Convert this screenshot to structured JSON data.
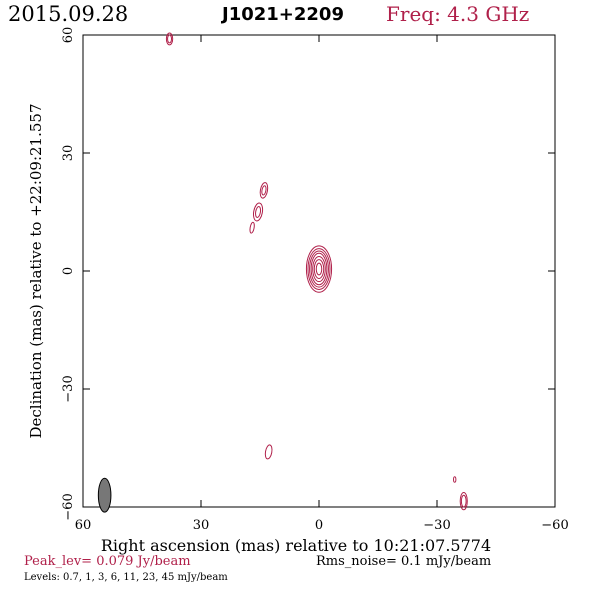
{
  "header": {
    "date": "2015.09.28",
    "source": "J1021+2209",
    "frequency": "Freq: 4.3 GHz"
  },
  "footer": {
    "peak": "Peak_lev=  0.079 Jy/beam",
    "rms": "Rms_noise=  0.1 mJy/beam",
    "levels": "Levels: 0.7,   1,   3,   6,  11,  23,  45 mJy/beam"
  },
  "colors": {
    "contour": "#b0204a",
    "beam": "#777777",
    "axis": "#000000"
  },
  "chart_data": {
    "type": "contour",
    "xlabel": "Right ascension (mas) relative to 10:21:07.5774",
    "ylabel": "Declination (mas) relative to +22:09:21.557",
    "xlim": [
      60,
      -60
    ],
    "ylim": [
      -60,
      60
    ],
    "xticks": [
      60,
      30,
      0,
      -30,
      -60
    ],
    "yticks": [
      -60,
      -30,
      0,
      30,
      60
    ],
    "xtick_labels": [
      "60",
      "30",
      "0",
      "−30",
      "−60"
    ],
    "ytick_labels": [
      "−60",
      "−30",
      "0",
      "30",
      "60"
    ],
    "levels_mjy": [
      0.7,
      1,
      3,
      6,
      11,
      23,
      45
    ],
    "peak_jy_per_beam": 0.079,
    "rms_mjy_per_beam": 0.1,
    "beam": {
      "x": 54.5,
      "y": -57,
      "major": 4.3,
      "minor": 1.6,
      "pa_deg": 0
    },
    "components": [
      {
        "name": "core",
        "x": 0,
        "y": 0.5,
        "major": [
          1.5,
          2.4,
          3.2,
          4.0,
          4.6,
          5.2,
          5.9
        ],
        "minor": [
          0.7,
          1.2,
          1.6,
          2.0,
          2.4,
          2.8,
          3.2
        ],
        "pa_deg": 0
      },
      {
        "name": "jet-a",
        "x": 14,
        "y": 20.5,
        "major": [
          1.2,
          2.0
        ],
        "minor": [
          0.5,
          0.9
        ],
        "pa_deg": 10
      },
      {
        "name": "jet-b",
        "x": 15.5,
        "y": 15,
        "major": [
          1.4,
          2.3
        ],
        "minor": [
          0.6,
          1.1
        ],
        "pa_deg": 10
      },
      {
        "name": "jet-c",
        "x": 17,
        "y": 11,
        "major": [
          1.4
        ],
        "minor": [
          0.5
        ],
        "pa_deg": 10
      },
      {
        "name": "north-blob",
        "x": 38,
        "y": 59,
        "major": [
          1.0,
          1.5
        ],
        "minor": [
          0.5,
          0.8
        ],
        "pa_deg": 0
      },
      {
        "name": "south-blob",
        "x": 12.8,
        "y": -46,
        "major": [
          1.8
        ],
        "minor": [
          0.8
        ],
        "pa_deg": 10
      },
      {
        "name": "se-blob-a",
        "x": -36.8,
        "y": -58.5,
        "major": [
          1.5,
          2.2
        ],
        "minor": [
          0.6,
          0.9
        ],
        "pa_deg": 0
      },
      {
        "name": "se-blob-b",
        "x": -34.5,
        "y": -53,
        "major": [
          0.7
        ],
        "minor": [
          0.3
        ],
        "pa_deg": 0
      }
    ]
  }
}
